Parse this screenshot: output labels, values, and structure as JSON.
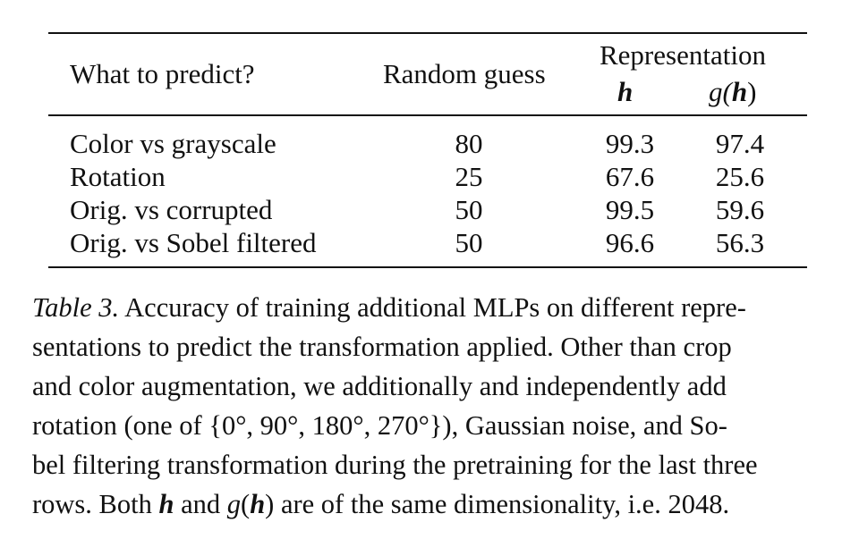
{
  "table": {
    "headers": {
      "what": "What to predict?",
      "random": "Random guess",
      "representation": "Representation",
      "h": "h",
      "g_prefix": "g(",
      "g_h": "h",
      "g_suffix": ")"
    },
    "rows": [
      {
        "name": "Color vs grayscale",
        "random": "80",
        "h": "99.3",
        "gh": "97.4"
      },
      {
        "name": "Rotation",
        "random": "25",
        "h": "67.6",
        "gh": "25.6"
      },
      {
        "name": "Orig. vs corrupted",
        "random": "50",
        "h": "99.5",
        "gh": "59.6"
      },
      {
        "name": "Orig. vs Sobel filtered",
        "random": "50",
        "h": "96.6",
        "gh": "56.3"
      }
    ]
  },
  "caption": {
    "label": "Table 3.",
    "line1": " Accuracy of training additional MLPs on different repre-",
    "line2": "sentations to predict the transformation applied. Other than crop",
    "line3": "and color augmentation, we additionally and independently add",
    "line4": "rotation (one of {0°, 90°, 180°, 270°}), Gaussian noise, and So-",
    "line5": "bel filtering transformation during the pretraining for the last three",
    "line6_a": "rows. Both ",
    "line6_h": "h",
    "line6_b": " and ",
    "line6_g": "g",
    "line6_paren_open": "(",
    "line6_h2": "h",
    "line6_paren_close": ")",
    "line6_c": " are of the same dimensionality, i.e. 2048."
  }
}
